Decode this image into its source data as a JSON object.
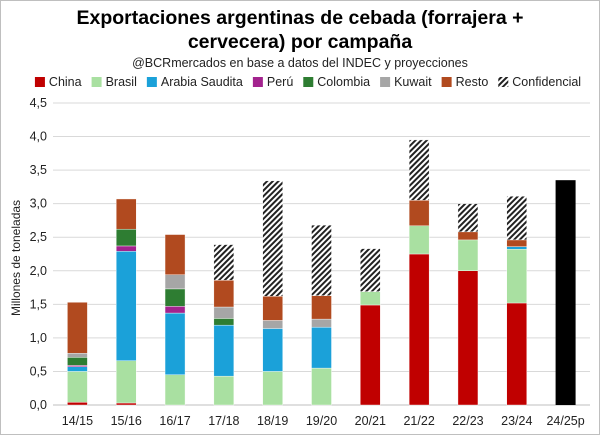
{
  "chart_data": {
    "type": "stacked-bar",
    "title": "Exportaciones argentinas de cebada (forrajera + cervecera) por campaña",
    "title_lines": [
      "Exportaciones argentinas de cebada (forrajera +",
      "cervecera) por campaña"
    ],
    "subtitle": "@BCRmercados en base a datos del INDEC y proyecciones",
    "ylabel": "Millones de toneladas",
    "ylim": [
      0,
      4.5
    ],
    "yticks": [
      "0,0",
      "0,5",
      "1,0",
      "1,5",
      "2,0",
      "2,5",
      "3,0",
      "3,5",
      "4,0",
      "4,5"
    ],
    "grid": true,
    "legend_position": "top",
    "categories": [
      "14/15",
      "15/16",
      "16/17",
      "17/18",
      "18/19",
      "19/20",
      "20/21",
      "21/22",
      "22/23",
      "23/24",
      "24/25p"
    ],
    "series": [
      {
        "name": "China",
        "color": "#c00000",
        "values": [
          0.04,
          0.03,
          0,
          0,
          0,
          0,
          1.49,
          2.25,
          2.0,
          1.52,
          0
        ]
      },
      {
        "name": "Brasil",
        "color": "#a9e0a1",
        "values": [
          0.46,
          0.63,
          0.45,
          0.43,
          0.5,
          0.55,
          0.2,
          0.42,
          0.46,
          0.8,
          0
        ]
      },
      {
        "name": "Arabia Saudita",
        "color": "#1ba1d9",
        "values": [
          0.07,
          1.63,
          0.92,
          0.76,
          0.64,
          0.61,
          0,
          0,
          0,
          0.04,
          0
        ]
      },
      {
        "name": "Perú",
        "color": "#a3238e",
        "values": [
          0.02,
          0.08,
          0.1,
          0,
          0,
          0,
          0,
          0,
          0,
          0,
          0
        ]
      },
      {
        "name": "Colombia",
        "color": "#2e7d32",
        "values": [
          0.12,
          0.25,
          0.26,
          0.1,
          0,
          0,
          0,
          0,
          0,
          0,
          0
        ]
      },
      {
        "name": "Kuwait",
        "color": "#a6a6a6",
        "values": [
          0.06,
          0,
          0.21,
          0.17,
          0.12,
          0.12,
          0,
          0,
          0,
          0,
          0
        ]
      },
      {
        "name": "Resto",
        "color": "#b14a1f",
        "values": [
          0.76,
          0.45,
          0.6,
          0.4,
          0.36,
          0.35,
          0,
          0.38,
          0.12,
          0.1,
          0
        ]
      },
      {
        "name": "Confidencial",
        "color": "hatch",
        "values": [
          0,
          0,
          0,
          0.53,
          1.72,
          1.05,
          0.64,
          0.9,
          0.42,
          0.65,
          0
        ]
      }
    ],
    "projection": {
      "category": "24/25p",
      "value": 3.35,
      "color": "#000000"
    }
  }
}
